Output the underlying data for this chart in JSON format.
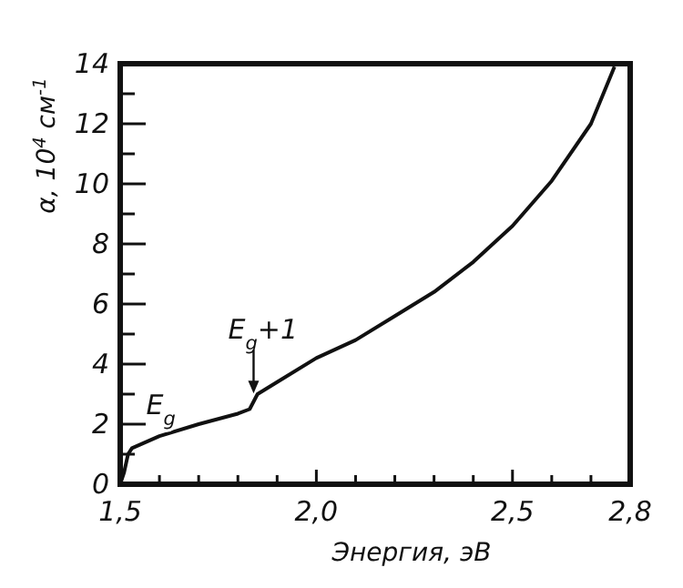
{
  "chart_data": {
    "type": "line",
    "xlabel": "Энергия, эВ",
    "ylabel": "α, 10$^{4}$ см$^{-1}$",
    "x": [
      1.5,
      1.51,
      1.52,
      1.53,
      1.6,
      1.7,
      1.8,
      1.83,
      1.85,
      1.9,
      2.0,
      2.1,
      2.2,
      2.3,
      2.4,
      2.5,
      2.6,
      2.7,
      2.76
    ],
    "series": [
      {
        "color": "#111111",
        "values": [
          0,
          0.4,
          1.0,
          1.2,
          1.6,
          2.0,
          2.35,
          2.5,
          3.0,
          3.4,
          4.2,
          4.8,
          5.6,
          6.4,
          7.4,
          8.6,
          10.1,
          12.0,
          13.9
        ]
      }
    ],
    "xlim": [
      1.5,
      2.8
    ],
    "ylim": [
      0,
      14
    ],
    "xticks": [
      {
        "value": 1.5,
        "label": "1,5"
      },
      {
        "value": 1.6,
        "label": null
      },
      {
        "value": 1.7,
        "label": null
      },
      {
        "value": 1.8,
        "label": null
      },
      {
        "value": 1.9,
        "label": null
      },
      {
        "value": 2.0,
        "label": "2,0"
      },
      {
        "value": 2.1,
        "label": null
      },
      {
        "value": 2.2,
        "label": null
      },
      {
        "value": 2.3,
        "label": null
      },
      {
        "value": 2.4,
        "label": null
      },
      {
        "value": 2.5,
        "label": "2,5"
      },
      {
        "value": 2.6,
        "label": null
      },
      {
        "value": 2.7,
        "label": null
      },
      {
        "value": 2.8,
        "label": "2,8"
      }
    ],
    "yticks": [
      0,
      {
        "value": 1,
        "label": null
      },
      2,
      {
        "value": 3,
        "label": null
      },
      4,
      {
        "value": 5,
        "label": null
      },
      6,
      {
        "value": 7,
        "label": null
      },
      8,
      {
        "value": 9,
        "label": null
      },
      10,
      {
        "value": 11,
        "label": null
      },
      12,
      {
        "value": 13,
        "label": null
      },
      14
    ],
    "annotations": [
      {
        "text": "E$_{g}$",
        "x": 1.52,
        "y": 1.0
      },
      {
        "text": "E$_{g}$+1",
        "x": 1.84,
        "y": 2.9
      }
    ],
    "grid": false,
    "marker": "none",
    "line_style": "solid"
  }
}
